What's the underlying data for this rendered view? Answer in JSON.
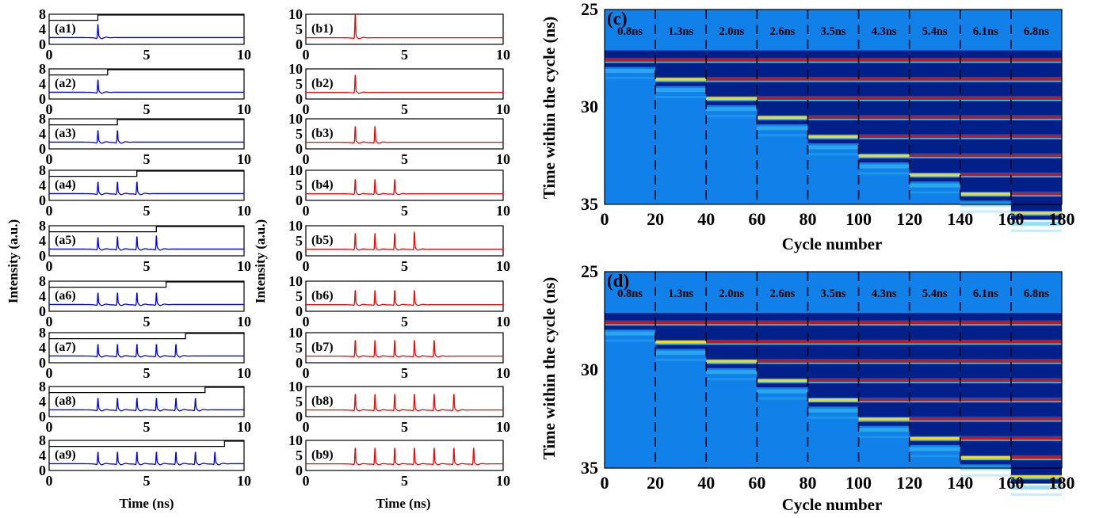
{
  "colors": {
    "series_a": "#0000ff",
    "series_b": "#ff0000",
    "gate": "#000000",
    "heatmap_bg": "#1180e8",
    "heatmap_dark": "#02208a",
    "heatmap_mid": "#0a4fd0",
    "heatmap_cyan": "#3fc5ef",
    "heatmap_yellow": "#f0d830",
    "heatmap_red": "#c21a1a"
  },
  "chart_data": [
    {
      "type": "line",
      "group": "a",
      "panel_labels": [
        "(a1)",
        "(a2)",
        "(a3)",
        "(a4)",
        "(a5)",
        "(a6)",
        "(a7)",
        "(a8)",
        "(a9)"
      ],
      "ylabel": "Intensity (a.u.)",
      "xlabel": "Time (ns)",
      "xlim": [
        0,
        10
      ],
      "xticks": [
        "0",
        "5",
        "10"
      ],
      "ylim": [
        0,
        8
      ],
      "yticks": [
        "0",
        "4",
        "8"
      ],
      "baseline": 1.8,
      "peak_positions_ns": [
        [
          2.5
        ],
        [
          2.5
        ],
        [
          2.5,
          3.5
        ],
        [
          2.5,
          3.5,
          4.5
        ],
        [
          2.5,
          3.5,
          4.5,
          5.5
        ],
        [
          2.5,
          3.5,
          4.5,
          5.5
        ],
        [
          2.5,
          3.5,
          4.5,
          5.5,
          6.5
        ],
        [
          2.5,
          3.5,
          4.5,
          5.5,
          6.5,
          7.5
        ],
        [
          2.5,
          3.5,
          4.5,
          5.5,
          6.5,
          7.5,
          8.5
        ]
      ],
      "peak_heights": [
        [
          5.2
        ],
        [
          5.0
        ],
        [
          4.8,
          4.8
        ],
        [
          4.8,
          4.8,
          4.8
        ],
        [
          4.8,
          5.0,
          5.0,
          5.2
        ],
        [
          4.8,
          4.8,
          4.8,
          4.8
        ],
        [
          4.8,
          4.8,
          4.8,
          4.8,
          4.8
        ],
        [
          4.8,
          4.8,
          4.8,
          4.8,
          4.8,
          4.8
        ],
        [
          4.8,
          4.8,
          4.8,
          4.8,
          4.8,
          4.8,
          4.8
        ]
      ],
      "gate_high": 7.8,
      "gate_low": 6.4,
      "gate_high_from_ns": [
        2.5,
        3.0,
        3.5,
        4.5,
        5.5,
        6.0,
        7.0,
        8.0,
        9.0
      ]
    },
    {
      "type": "line",
      "group": "b",
      "panel_labels": [
        "(b1)",
        "(b2)",
        "(b3)",
        "(b4)",
        "(b5)",
        "(b6)",
        "(b7)",
        "(b8)",
        "(b9)"
      ],
      "ylabel": "Intensity (a.u.)",
      "xlabel": "Time (ns)",
      "xlim": [
        0,
        10
      ],
      "xticks": [
        "0",
        "5",
        "10"
      ],
      "ylim": [
        0,
        10
      ],
      "yticks": [
        "0",
        "5",
        "10"
      ],
      "baseline": 2.2,
      "peak_positions_ns": [
        [
          2.5
        ],
        [
          2.5
        ],
        [
          2.5,
          3.5
        ],
        [
          2.5,
          3.5,
          4.5
        ],
        [
          2.5,
          3.5,
          4.5,
          5.5
        ],
        [
          2.5,
          3.5,
          4.5,
          5.5
        ],
        [
          2.5,
          3.5,
          4.5,
          5.5,
          6.5
        ],
        [
          2.5,
          3.5,
          4.5,
          5.5,
          6.5,
          7.5
        ],
        [
          2.5,
          3.5,
          4.5,
          5.5,
          6.5,
          7.5,
          8.5
        ]
      ],
      "peak_heights": [
        [
          10.0
        ],
        [
          8.0
        ],
        [
          7.5,
          7.5
        ],
        [
          7.0,
          7.0,
          7.0
        ],
        [
          7.5,
          7.5,
          7.5,
          8.0
        ],
        [
          7.0,
          7.0,
          7.0,
          7.0
        ],
        [
          7.5,
          7.5,
          7.5,
          7.5,
          7.5
        ],
        [
          7.5,
          7.5,
          7.5,
          7.5,
          7.5,
          7.5
        ],
        [
          7.5,
          7.5,
          7.5,
          7.5,
          7.5,
          7.5,
          7.5
        ]
      ]
    },
    {
      "type": "heatmap",
      "panel_label": "(c)",
      "xlabel": "Cycle number",
      "ylabel": "Time within the cycle (ns)",
      "xlim": [
        0,
        180
      ],
      "xticks": [
        "0",
        "20",
        "40",
        "60",
        "80",
        "100",
        "120",
        "140",
        "160",
        "180"
      ],
      "ylim": [
        25,
        35
      ],
      "yticks": [
        "25",
        "30",
        "35"
      ],
      "segment_labels": [
        "0.8ns",
        "1.3ns",
        "2.0ns",
        "2.6ns",
        "3.5ns",
        "4.3ns",
        "5.4ns",
        "6.1ns",
        "6.8ns"
      ],
      "segment_boundaries": [
        20,
        40,
        60,
        80,
        100,
        120,
        140,
        160
      ],
      "first_pulse_time_ns": 27.6,
      "pulse_spacing_ns": 0.98,
      "dark_band_start_ns": 27.1
    },
    {
      "type": "heatmap",
      "panel_label": "(d)",
      "xlabel": "Cycle number",
      "ylabel": "Time within the cycle (ns)",
      "xlim": [
        0,
        180
      ],
      "xticks": [
        "0",
        "20",
        "40",
        "60",
        "80",
        "100",
        "120",
        "140",
        "160",
        "180"
      ],
      "ylim": [
        25,
        35
      ],
      "yticks": [
        "25",
        "30",
        "35"
      ],
      "segment_labels": [
        "0.8ns",
        "1.3ns",
        "2.0ns",
        "2.6ns",
        "3.5ns",
        "4.3ns",
        "5.4ns",
        "6.1ns",
        "6.8ns"
      ],
      "segment_boundaries": [
        20,
        40,
        60,
        80,
        100,
        120,
        140,
        160
      ],
      "first_pulse_time_ns": 27.6,
      "pulse_spacing_ns": 0.98,
      "dark_band_start_ns": 27.1
    }
  ]
}
